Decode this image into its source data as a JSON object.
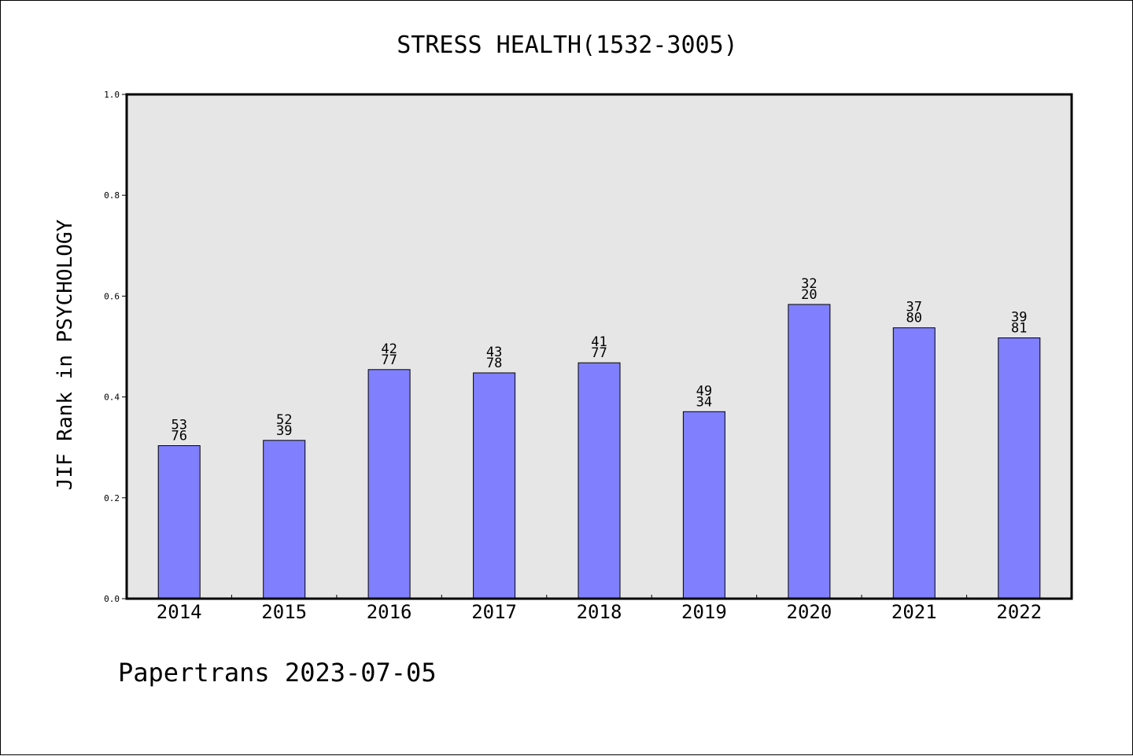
{
  "chart_data": {
    "type": "bar",
    "title": "STRESS HEALTH(1532-3005)",
    "xlabel": "",
    "ylabel": "JIF Rank in PSYCHOLOGY",
    "categories": [
      "2014",
      "2015",
      "2016",
      "2017",
      "2018",
      "2019",
      "2020",
      "2021",
      "2022"
    ],
    "values": [
      0.3034,
      0.3139,
      0.4543,
      0.4478,
      0.4677,
      0.3708,
      0.5834,
      0.5371,
      0.5172
    ],
    "value_labels": [
      [
        "53",
        "76"
      ],
      [
        "52",
        "39"
      ],
      [
        "42",
        "77"
      ],
      [
        "43",
        "78"
      ],
      [
        "41",
        "77"
      ],
      [
        "49",
        "34"
      ],
      [
        "32",
        "20"
      ],
      [
        "37",
        "80"
      ],
      [
        "39",
        "81"
      ]
    ],
    "ylim": [
      0.0,
      1.0
    ],
    "yticks": [
      "0.0",
      "0.2",
      "0.4",
      "0.6",
      "0.8",
      "1.0"
    ],
    "grid": false,
    "colors": {
      "bar": "#8080ff",
      "plot_background": "#e6e6e6",
      "axis": "#000000"
    }
  },
  "footer": {
    "text": "Papertrans 2023-07-05"
  }
}
